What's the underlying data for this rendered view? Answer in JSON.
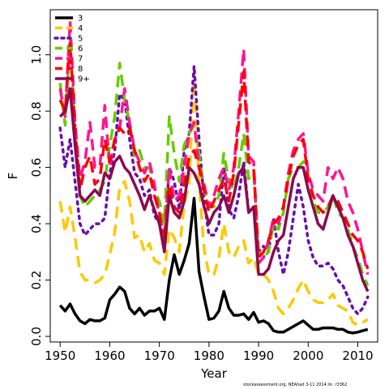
{
  "chart_data": {
    "type": "line",
    "title": "",
    "xlabel": "Year",
    "ylabel": "F",
    "xlim": [
      1948,
      2014
    ],
    "ylim": [
      -0.02,
      1.16
    ],
    "xticks": [
      1950,
      1960,
      1970,
      1980,
      1990,
      2000,
      2010
    ],
    "yticks": [
      0.0,
      0.2,
      0.4,
      0.6,
      0.8,
      1.0
    ],
    "ytick_labels": [
      "0.0",
      "0.2",
      "0.4",
      "0.6",
      "0.8",
      "1.0"
    ],
    "grid": false,
    "legend_position": "top-left",
    "x": [
      1950,
      1951,
      1952,
      1953,
      1954,
      1955,
      1956,
      1957,
      1958,
      1959,
      1960,
      1961,
      1962,
      1963,
      1964,
      1965,
      1966,
      1967,
      1968,
      1969,
      1970,
      1971,
      1972,
      1973,
      1974,
      1975,
      1976,
      1977,
      1978,
      1979,
      1980,
      1981,
      1982,
      1983,
      1984,
      1985,
      1986,
      1987,
      1988,
      1989,
      1990,
      1991,
      1992,
      1993,
      1994,
      1995,
      1996,
      1997,
      1998,
      1999,
      2000,
      2001,
      2002,
      2003,
      2004,
      2005,
      2006,
      2007,
      2008,
      2009,
      2010,
      2011,
      2012
    ],
    "series": [
      {
        "name": "3",
        "color": "#000000",
        "dash": "solid",
        "values": [
          0.11,
          0.09,
          0.115,
          0.08,
          0.055,
          0.045,
          0.06,
          0.055,
          0.055,
          0.065,
          0.13,
          0.15,
          0.175,
          0.16,
          0.1,
          0.08,
          0.1,
          0.075,
          0.09,
          0.09,
          0.1,
          0.06,
          0.2,
          0.29,
          0.22,
          0.27,
          0.33,
          0.49,
          0.23,
          0.14,
          0.06,
          0.065,
          0.09,
          0.16,
          0.1,
          0.075,
          0.075,
          0.08,
          0.06,
          0.085,
          0.05,
          0.055,
          0.045,
          0.02,
          0.015,
          0.015,
          0.025,
          0.035,
          0.045,
          0.055,
          0.04,
          0.025,
          0.025,
          0.03,
          0.03,
          0.03,
          0.025,
          0.025,
          0.015,
          0.012,
          0.015,
          0.02,
          0.025
        ]
      },
      {
        "name": "4",
        "color": "#FFC800",
        "dash": "dash",
        "values": [
          0.48,
          0.37,
          0.46,
          0.35,
          0.23,
          0.2,
          0.2,
          0.19,
          0.2,
          0.22,
          0.29,
          0.37,
          0.53,
          0.55,
          0.48,
          0.35,
          0.36,
          0.3,
          0.33,
          0.27,
          0.26,
          0.22,
          0.38,
          0.35,
          0.3,
          0.47,
          0.54,
          0.94,
          0.55,
          0.31,
          0.22,
          0.22,
          0.28,
          0.4,
          0.3,
          0.28,
          0.32,
          0.34,
          0.26,
          0.28,
          0.22,
          0.22,
          0.2,
          0.16,
          0.1,
          0.08,
          0.1,
          0.13,
          0.17,
          0.2,
          0.16,
          0.13,
          0.12,
          0.12,
          0.13,
          0.15,
          0.11,
          0.1,
          0.09,
          0.05,
          0.04,
          0.05,
          0.06
        ]
      },
      {
        "name": "5",
        "color": "#6A0DAD",
        "dash": "dot",
        "values": [
          0.74,
          0.6,
          0.7,
          0.55,
          0.4,
          0.36,
          0.38,
          0.4,
          0.4,
          0.42,
          0.58,
          0.66,
          0.86,
          0.84,
          0.7,
          0.58,
          0.56,
          0.5,
          0.52,
          0.43,
          0.4,
          0.34,
          0.6,
          0.55,
          0.45,
          0.66,
          0.72,
          0.96,
          0.7,
          0.48,
          0.36,
          0.36,
          0.4,
          0.6,
          0.45,
          0.42,
          0.5,
          0.62,
          0.44,
          0.46,
          0.3,
          0.32,
          0.3,
          0.42,
          0.3,
          0.22,
          0.3,
          0.42,
          0.54,
          0.46,
          0.34,
          0.28,
          0.25,
          0.25,
          0.26,
          0.24,
          0.2,
          0.18,
          0.14,
          0.1,
          0.08,
          0.1,
          0.14
        ]
      },
      {
        "name": "6",
        "color": "#66CC00",
        "dash": "dash",
        "values": [
          0.9,
          0.75,
          1.06,
          0.72,
          0.5,
          0.46,
          0.48,
          0.5,
          0.52,
          0.55,
          0.68,
          0.78,
          0.97,
          0.84,
          0.76,
          0.64,
          0.66,
          0.6,
          0.6,
          0.52,
          0.48,
          0.4,
          0.78,
          0.65,
          0.55,
          0.68,
          0.72,
          0.75,
          0.65,
          0.52,
          0.46,
          0.46,
          0.5,
          0.65,
          0.55,
          0.52,
          0.6,
          0.72,
          0.56,
          0.58,
          0.3,
          0.28,
          0.3,
          0.4,
          0.38,
          0.44,
          0.56,
          0.6,
          0.6,
          0.62,
          0.52,
          0.48,
          0.44,
          0.44,
          0.46,
          0.5,
          0.44,
          0.42,
          0.38,
          0.32,
          0.28,
          0.22,
          0.18
        ]
      },
      {
        "name": "7",
        "color": "#FF1493",
        "dash": "dash",
        "values": [
          0.88,
          0.78,
          1.12,
          0.76,
          0.56,
          0.62,
          0.76,
          0.6,
          0.6,
          0.82,
          0.6,
          0.7,
          0.74,
          0.88,
          0.76,
          0.66,
          0.62,
          0.58,
          0.62,
          0.54,
          0.42,
          0.36,
          0.6,
          0.48,
          0.5,
          0.6,
          0.72,
          0.76,
          0.6,
          0.54,
          0.46,
          0.5,
          0.56,
          0.6,
          0.52,
          0.6,
          0.8,
          1.02,
          0.64,
          0.62,
          0.26,
          0.28,
          0.34,
          0.42,
          0.4,
          0.46,
          0.58,
          0.66,
          0.7,
          0.72,
          0.58,
          0.52,
          0.5,
          0.48,
          0.6,
          0.56,
          0.6,
          0.56,
          0.48,
          0.44,
          0.38,
          0.3,
          0.22
        ]
      },
      {
        "name": "8",
        "color": "#FF0000",
        "dash": "dash",
        "values": [
          0.84,
          0.8,
          1.04,
          0.74,
          0.52,
          0.6,
          0.64,
          0.54,
          0.56,
          0.7,
          0.62,
          0.7,
          0.74,
          0.72,
          0.74,
          0.66,
          0.6,
          0.55,
          0.58,
          0.5,
          0.44,
          0.34,
          0.54,
          0.46,
          0.44,
          0.54,
          0.64,
          0.66,
          0.6,
          0.52,
          0.44,
          0.48,
          0.52,
          0.56,
          0.48,
          0.58,
          0.76,
          0.94,
          0.62,
          0.6,
          0.28,
          0.3,
          0.34,
          0.4,
          0.42,
          0.46,
          0.56,
          0.64,
          0.68,
          0.7,
          0.56,
          0.5,
          0.46,
          0.44,
          0.46,
          0.5,
          0.48,
          0.44,
          0.4,
          0.36,
          0.34,
          0.3,
          0.24
        ]
      },
      {
        "name": "9+",
        "color": "#8B0A50",
        "dash": "solid",
        "values": [
          0.78,
          0.8,
          0.88,
          0.68,
          0.5,
          0.48,
          0.5,
          0.52,
          0.5,
          0.58,
          0.56,
          0.62,
          0.64,
          0.6,
          0.58,
          0.54,
          0.5,
          0.45,
          0.5,
          0.45,
          0.4,
          0.3,
          0.5,
          0.44,
          0.42,
          0.48,
          0.6,
          0.58,
          0.54,
          0.46,
          0.4,
          0.44,
          0.46,
          0.5,
          0.44,
          0.5,
          0.58,
          0.6,
          0.44,
          0.46,
          0.22,
          0.22,
          0.24,
          0.3,
          0.34,
          0.36,
          0.46,
          0.56,
          0.6,
          0.6,
          0.52,
          0.46,
          0.4,
          0.38,
          0.44,
          0.5,
          0.46,
          0.42,
          0.36,
          0.32,
          0.26,
          0.2,
          0.16
        ]
      }
    ]
  },
  "footnote": "stockassessment.org, NEAhad 3-11 2014 lin. r3362"
}
